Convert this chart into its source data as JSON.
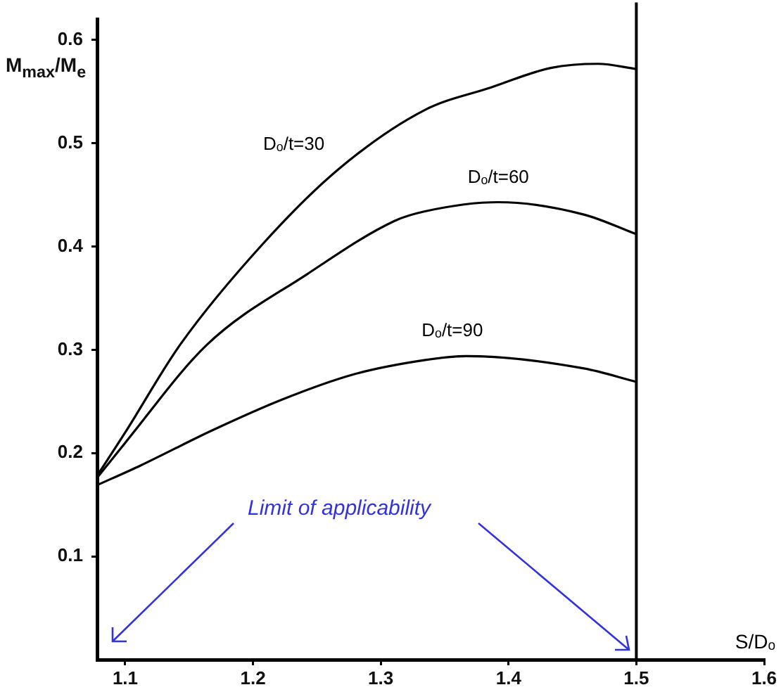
{
  "chart_data": {
    "type": "line",
    "ylabel": "M$_{max}$/M$_{e}$",
    "xlabel": "S/Dₒ",
    "annotations": [
      "Limit of applicability"
    ],
    "xlim": [
      1.078,
      1.6
    ],
    "xticks": [
      1.1,
      1.2,
      1.3,
      1.4,
      1.5,
      1.6
    ],
    "ylim": [
      0,
      0.62
    ],
    "yticks": [
      0.1,
      0.2,
      0.3,
      0.4,
      0.5,
      0.6
    ],
    "grid": false,
    "legend": false,
    "marker": "none",
    "line_style": "solid",
    "ref_lines": [
      {
        "axis": "x",
        "value": 1.5,
        "color": "#000000"
      }
    ],
    "series": [
      {
        "name": "Dₒ/t=30",
        "color": "#000000",
        "x": [
          1.078,
          1.1,
          1.143,
          1.208,
          1.267,
          1.334,
          1.386,
          1.433,
          1.47,
          1.5
        ],
        "values": [
          0.178,
          0.22,
          0.305,
          0.403,
          0.475,
          0.532,
          0.554,
          0.573,
          0.577,
          0.572
        ]
      },
      {
        "name": "Dₒ/t=60",
        "color": "#000000",
        "x": [
          1.078,
          1.1,
          1.164,
          1.242,
          1.311,
          1.334,
          1.392,
          1.459,
          1.5
        ],
        "values": [
          0.176,
          0.21,
          0.305,
          0.373,
          0.425,
          0.434,
          0.443,
          0.431,
          0.412
        ]
      },
      {
        "name": "Dₒ/t=90",
        "color": "#000000",
        "x": [
          1.078,
          1.112,
          1.168,
          1.223,
          1.278,
          1.334,
          1.367,
          1.459,
          1.5
        ],
        "values": [
          0.169,
          0.188,
          0.222,
          0.252,
          0.276,
          0.29,
          0.294,
          0.282,
          0.269
        ]
      }
    ]
  }
}
